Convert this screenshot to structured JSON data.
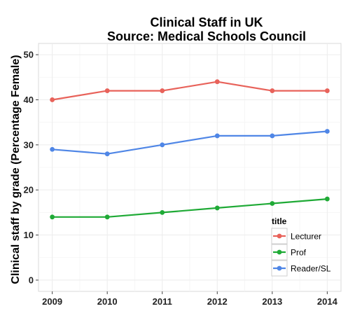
{
  "chart_data": {
    "type": "line",
    "title": [
      "Clinical Staff in UK",
      "Source: Medical Schools Council"
    ],
    "xlabel": "",
    "ylabel": "Clinical staff by grade (Percentage Female)",
    "x": [
      2009,
      2010,
      2011,
      2012,
      2013,
      2014
    ],
    "x_tick_labels": [
      "2009",
      "2010",
      "2011",
      "2012",
      "2013",
      "2014"
    ],
    "y_tick_labels": [
      "0",
      "10",
      "20",
      "30",
      "40",
      "50"
    ],
    "ylim": [
      -2.5,
      52.5
    ],
    "grid": true,
    "legend_title": "title",
    "legend_position": "bottom-right",
    "series": [
      {
        "name": "Lecturer",
        "color": "#e8625a",
        "values": [
          40,
          42,
          42,
          44,
          42,
          42
        ]
      },
      {
        "name": "Prof",
        "color": "#1faa36",
        "values": [
          14,
          14,
          15,
          16,
          17,
          18
        ]
      },
      {
        "name": "Reader/SL",
        "color": "#4f86e6",
        "values": [
          29,
          28,
          30,
          32,
          32,
          33
        ]
      }
    ]
  }
}
